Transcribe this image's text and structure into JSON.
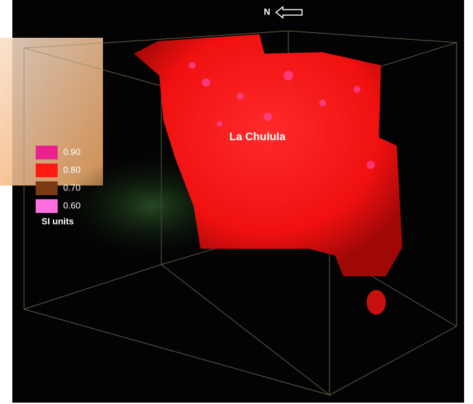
{
  "compass": {
    "label": "N"
  },
  "annotation": "La Chulula",
  "legend": {
    "items": [
      {
        "label": "0.90",
        "color": "#e8228c"
      },
      {
        "label": "0.80",
        "color": "#ff1a12"
      },
      {
        "label": "0.70",
        "color": "#7a3a12"
      },
      {
        "label": "0.60",
        "color": "#ff6fe0"
      }
    ],
    "unit": "SI units"
  }
}
